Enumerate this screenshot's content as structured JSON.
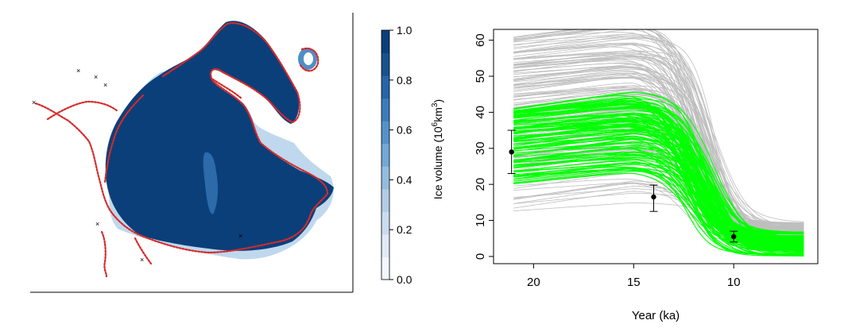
{
  "map_panel": {
    "colorbar": {
      "ticks": [
        "1.0",
        "0.8",
        "0.6",
        "0.4",
        "0.2",
        "0.0"
      ],
      "colors": [
        "#f3f7fd",
        "#e0ebf6",
        "#cadcf0",
        "#b0cde6",
        "#93bddf",
        "#72a9d6",
        "#5393c8",
        "#3a7cbb",
        "#2565a7",
        "#16528e",
        "#0a3f7a"
      ]
    },
    "ice_color": "#0d4079",
    "margin_color": "#d52a2a"
  },
  "chart_data": {
    "type": "line",
    "xlabel": "Year (ka)",
    "ylabel_main": "Ice volume (10",
    "ylabel_sup": "6",
    "ylabel_unit": "km",
    "ylabel_sup2": "3",
    "ylabel_close": ")",
    "xlim": [
      22.0,
      5.8
    ],
    "ylim": [
      -2,
      63
    ],
    "xticks": [
      20,
      15,
      10
    ],
    "yticks": [
      0,
      10,
      20,
      30,
      40,
      50,
      60
    ],
    "series": [
      {
        "color": "#bebebe",
        "count": 140,
        "start": [
          12,
          61
        ],
        "shoulder": [
          14.5,
          16
        ],
        "end": [
          2.5,
          9.5
        ]
      },
      {
        "color": "#00ff00",
        "count": 110,
        "start": [
          20,
          41.5
        ],
        "shoulder": [
          13.5,
          12.5
        ],
        "end": [
          0,
          7
        ]
      }
    ],
    "observations": [
      {
        "x": 21.1,
        "y": 29.0,
        "low": 23.0,
        "high": 35.0
      },
      {
        "x": 14.0,
        "y": 16.5,
        "low": 12.5,
        "high": 19.8
      },
      {
        "x": 10.0,
        "y": 5.5,
        "low": 4.0,
        "high": 7.0
      }
    ]
  }
}
